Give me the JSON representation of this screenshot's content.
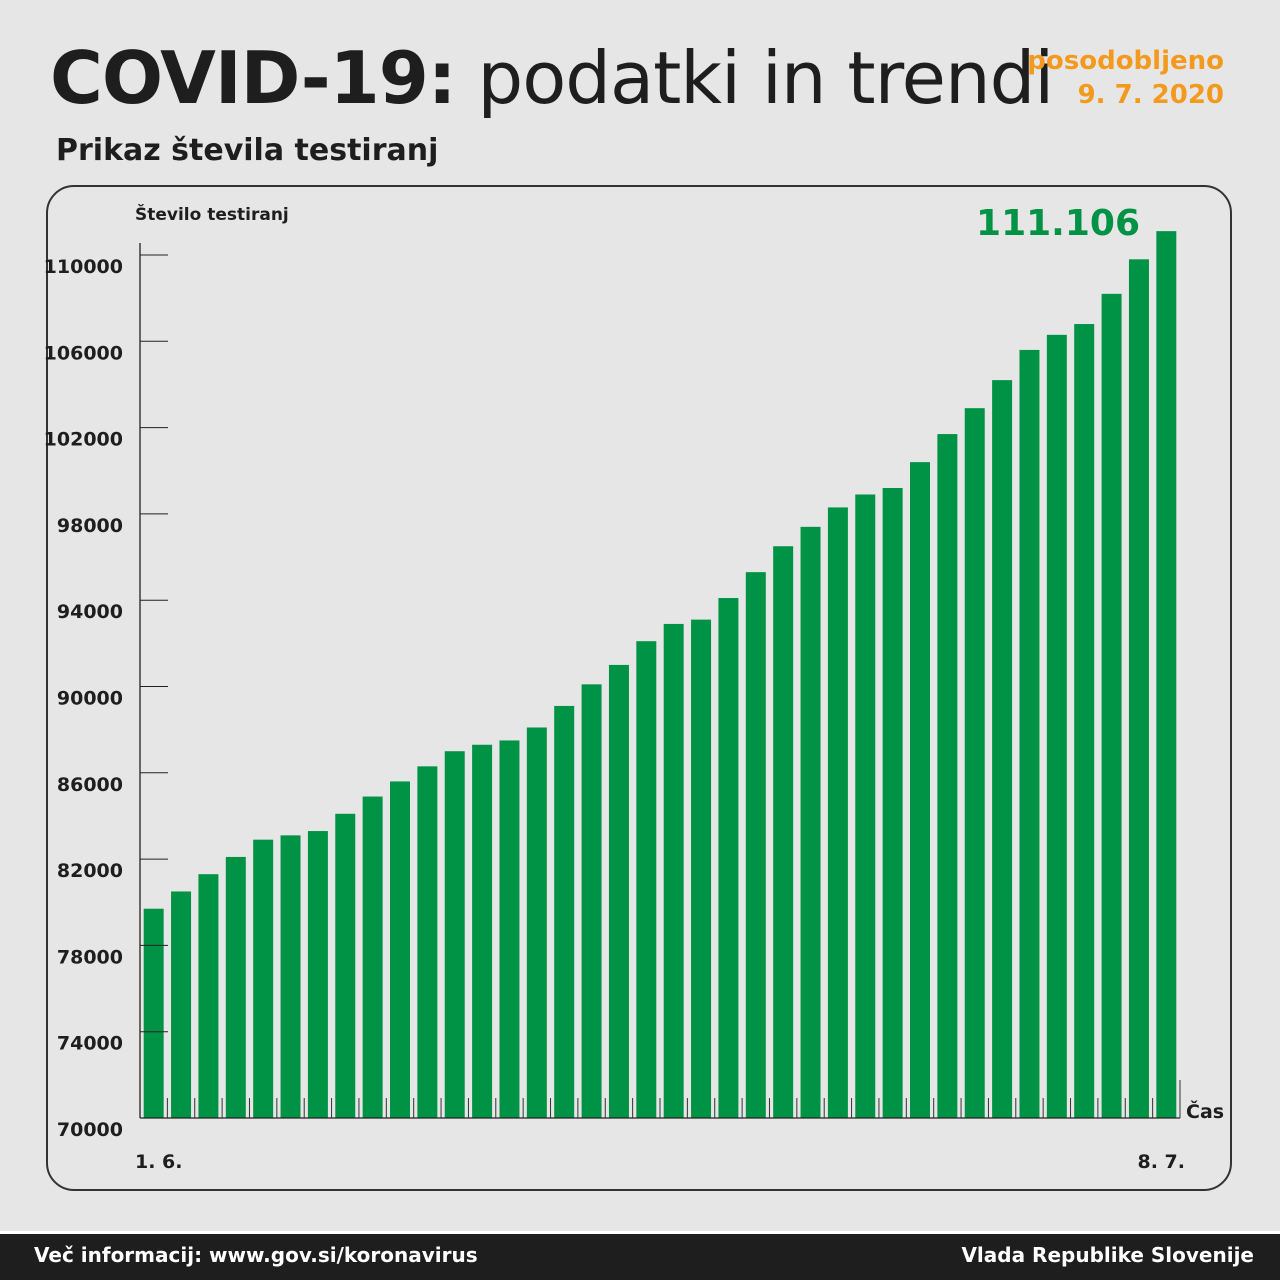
{
  "header": {
    "title_bold": "COVID-19:",
    "title_rest": "podatki in trendi",
    "updated_label": "posodobljeno",
    "updated_date": "9. 7. 2020",
    "subtitle": "Prikaz števila testiranj"
  },
  "chart_data": {
    "type": "bar",
    "ylabel": "Število testiranj",
    "xlabel": "Čas",
    "ylim": [
      70000,
      111106
    ],
    "yticks": [
      "110000",
      "106000",
      "102000",
      "98000",
      "94000",
      "90000",
      "86000",
      "82000",
      "78000",
      "74000",
      "70000"
    ],
    "x_start_label": "1. 6.",
    "x_end_label": "8. 7.",
    "highlight_label": "111.106",
    "values": [
      79700,
      80500,
      81300,
      82100,
      82900,
      83100,
      83300,
      84100,
      84900,
      85600,
      86300,
      87000,
      87300,
      87500,
      88100,
      89100,
      90100,
      91000,
      92100,
      92900,
      93100,
      94100,
      95300,
      96500,
      97400,
      98300,
      98900,
      99200,
      100400,
      101700,
      102900,
      104200,
      105600,
      106300,
      106800,
      108200,
      109800,
      111106
    ],
    "bar_color": "#009245",
    "highlight_color": "#009245",
    "grid": false
  },
  "footer": {
    "left": "Več informacij: www.gov.si/koronavirus",
    "right": "Vlada Republike Slovenije"
  }
}
